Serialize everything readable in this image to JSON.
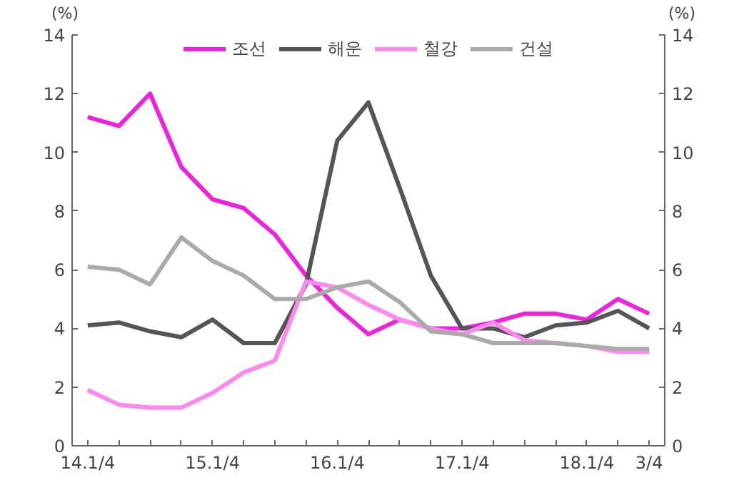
{
  "chart_data": {
    "type": "line",
    "ylabel": "(%)",
    "y2label": "(%)",
    "categories": [
      "14.1/4",
      null,
      null,
      null,
      "15.1/4",
      null,
      null,
      null,
      "16.1/4",
      null,
      null,
      null,
      "17.1/4",
      null,
      null,
      null,
      "18.1/4",
      null,
      "3/4"
    ],
    "series": [
      {
        "name": "조선",
        "color": "#ee22dd",
        "values": [
          11.2,
          10.9,
          12.0,
          9.5,
          8.4,
          8.1,
          7.2,
          5.8,
          4.7,
          3.8,
          4.3,
          4.0,
          4.0,
          4.2,
          4.5,
          4.5,
          4.3,
          5.0,
          4.5
        ]
      },
      {
        "name": "해운",
        "color": "#555555",
        "values": [
          4.1,
          4.2,
          3.9,
          3.7,
          4.3,
          3.5,
          3.5,
          5.5,
          10.4,
          11.7,
          8.8,
          5.8,
          4.0,
          4.0,
          3.7,
          4.1,
          4.2,
          4.6,
          4.0
        ]
      },
      {
        "name": "철강",
        "color": "#ff88ee",
        "values": [
          1.9,
          1.4,
          1.3,
          1.3,
          1.8,
          2.5,
          2.9,
          5.6,
          5.4,
          4.8,
          4.3,
          4.0,
          3.8,
          4.2,
          3.6,
          3.5,
          3.4,
          3.2,
          3.2
        ]
      },
      {
        "name": "건설",
        "color": "#aaaaaa",
        "values": [
          6.1,
          6.0,
          5.5,
          7.1,
          6.3,
          5.8,
          5.0,
          5.0,
          5.4,
          5.6,
          4.9,
          3.9,
          3.8,
          3.5,
          3.5,
          3.5,
          3.4,
          3.3,
          3.3
        ]
      }
    ],
    "ylim": [
      0,
      14
    ],
    "yticks": [
      0,
      2,
      4,
      6,
      8,
      10,
      12,
      14
    ],
    "y2lim": [
      0,
      14
    ],
    "y2ticks": [
      0,
      2,
      4,
      6,
      8,
      10,
      12,
      14
    ],
    "grid": false,
    "legend": "top",
    "marker": "none",
    "line_style": "solid"
  }
}
